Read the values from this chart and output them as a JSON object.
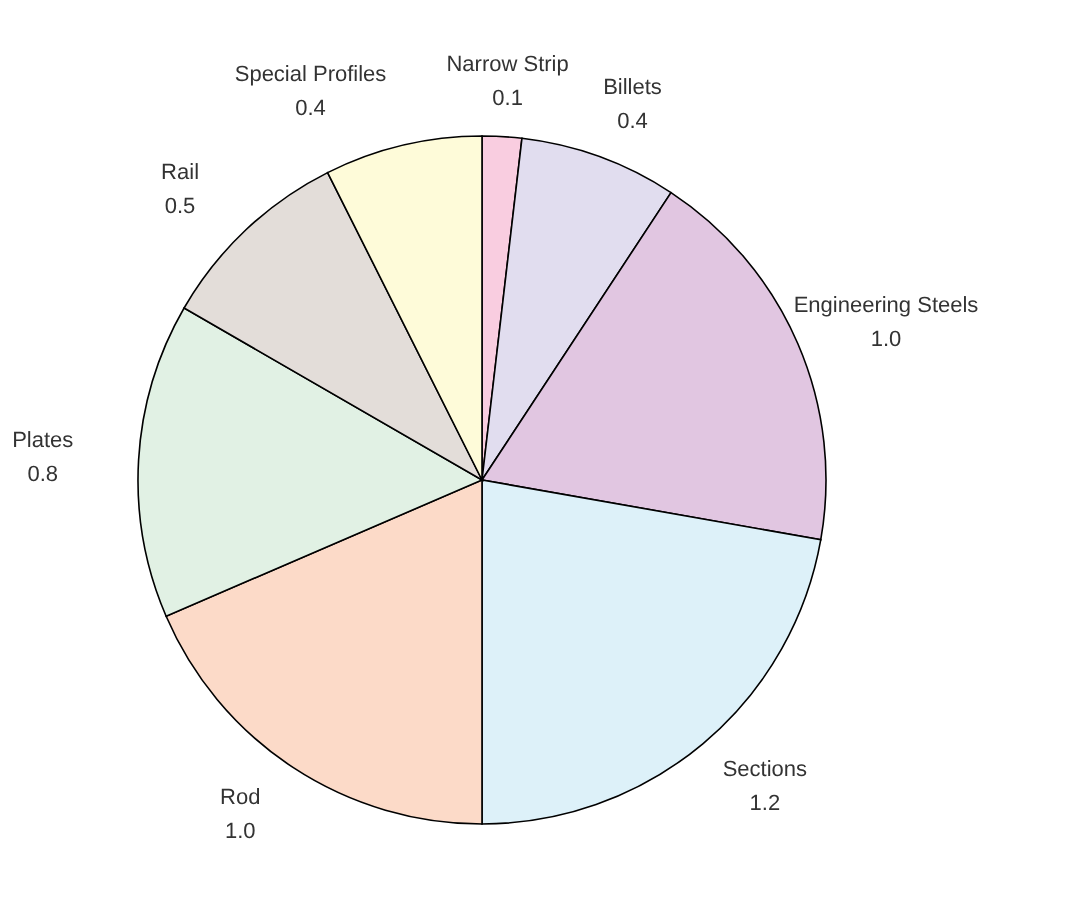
{
  "chart_data": {
    "type": "pie",
    "categories": [
      "Narrow Strip",
      "Billets",
      "Engineering Steels",
      "Sections",
      "Rod",
      "Plates",
      "Rail",
      "Special Profiles"
    ],
    "values": [
      0.1,
      0.4,
      1.0,
      1.2,
      1.0,
      0.8,
      0.5,
      0.4
    ],
    "colors": [
      "#f9cde0",
      "#e1ddef",
      "#e1c6e1",
      "#ddf1f9",
      "#fcdac8",
      "#e1f1e4",
      "#e3ddd9",
      "#fefbd9"
    ],
    "value_labels": [
      "0.1",
      "0.4",
      "1.0",
      "1.2",
      "1.0",
      "0.8",
      "0.5",
      "0.4"
    ]
  }
}
